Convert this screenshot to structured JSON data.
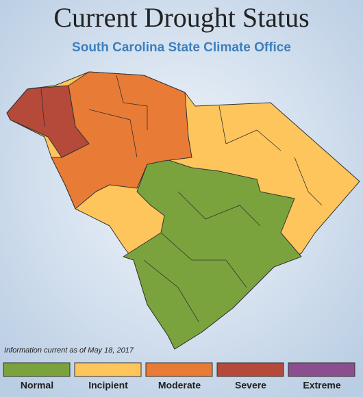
{
  "header": {
    "title": "Current Drought Status",
    "subtitle": "South Carolina State Climate Office"
  },
  "note": "Information current as of May 18, 2017",
  "legend": [
    {
      "name": "Normal",
      "color": "#7aa33e"
    },
    {
      "name": "Incipient",
      "color": "#fdc55c"
    },
    {
      "name": "Moderate",
      "color": "#e87b36"
    },
    {
      "name": "Severe",
      "color": "#b5493a"
    },
    {
      "name": "Extreme",
      "color": "#8b4f8f"
    }
  ]
}
